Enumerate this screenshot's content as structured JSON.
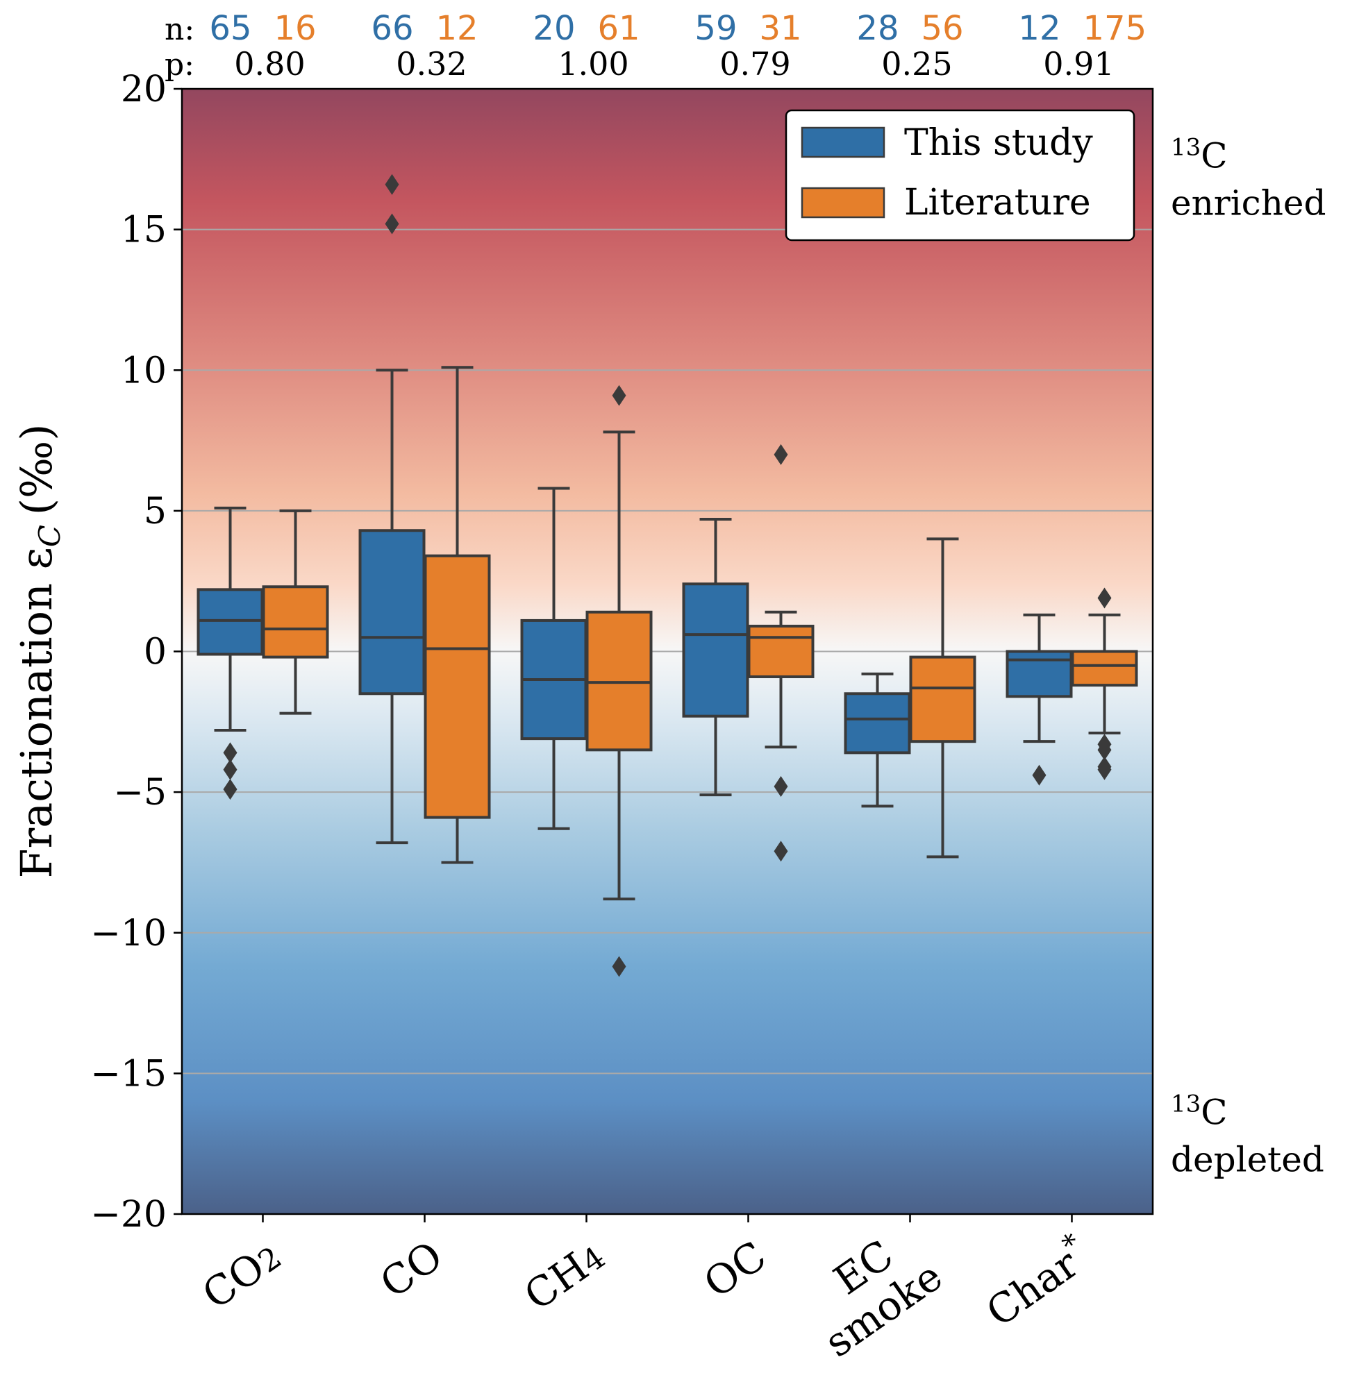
{
  "chart_data": {
    "type": "box",
    "ylabel_main": "Fractionation ε",
    "ylabel_sub": "C",
    "ylabel_unit": "(‰)",
    "ylim": [
      -20,
      20
    ],
    "yticks": [
      -20,
      -15,
      -10,
      -5,
      0,
      5,
      10,
      15,
      20
    ],
    "ytick_labels": [
      "−20",
      "−15",
      "−10",
      "−5",
      "0",
      "5",
      "10",
      "15",
      "20"
    ],
    "grid": "horizontal",
    "background": "diverging red-white-blue gradient (enriched above 0, depleted below 0)",
    "legend_position": "top-right",
    "series": [
      {
        "name": "This study",
        "color": "#2f6fa6"
      },
      {
        "name": "Literature",
        "color": "#e57f2b"
      }
    ],
    "categories": [
      {
        "label": "CO",
        "sub": "2",
        "sup": ""
      },
      {
        "label": "CO",
        "sub": "",
        "sup": ""
      },
      {
        "label": "CH",
        "sub": "4",
        "sup": ""
      },
      {
        "label": "OC",
        "sub": "",
        "sup": ""
      },
      {
        "label": "EC",
        "line2": "smoke",
        "sub": "",
        "sup": ""
      },
      {
        "label": "Char",
        "sub": "",
        "sup": "*"
      }
    ],
    "n_label": "n:",
    "p_label": "p:",
    "annotations_right": [
      {
        "sup": "13",
        "text": "C",
        "line2": "enriched",
        "y": 17
      },
      {
        "sup": "13",
        "text": "C",
        "line2": "depleted",
        "y": -17
      }
    ],
    "groups": [
      {
        "category": "CO2",
        "p": "0.80",
        "study": {
          "n": "65",
          "whisker_low": -2.8,
          "q1": -0.1,
          "median": 1.1,
          "q3": 2.2,
          "whisker_high": 5.1,
          "outliers": [
            -3.6,
            -4.2,
            -4.9
          ]
        },
        "literature": {
          "n": "16",
          "whisker_low": -2.2,
          "q1": -0.2,
          "median": 0.8,
          "q3": 2.3,
          "whisker_high": 5.0,
          "outliers": []
        }
      },
      {
        "category": "CO",
        "p": "0.32",
        "study": {
          "n": "66",
          "whisker_low": -6.8,
          "q1": -1.5,
          "median": 0.5,
          "q3": 4.3,
          "whisker_high": 10.0,
          "outliers": [
            16.6,
            15.2
          ]
        },
        "literature": {
          "n": "12",
          "whisker_low": -7.5,
          "q1": -5.9,
          "median": 0.1,
          "q3": 3.4,
          "whisker_high": 10.1,
          "outliers": []
        }
      },
      {
        "category": "CH4",
        "p": "1.00",
        "study": {
          "n": "20",
          "whisker_low": -6.3,
          "q1": -3.1,
          "median": -1.0,
          "q3": 1.1,
          "whisker_high": 5.8,
          "outliers": []
        },
        "literature": {
          "n": "61",
          "whisker_low": -8.8,
          "q1": -3.5,
          "median": -1.1,
          "q3": 1.4,
          "whisker_high": 7.8,
          "outliers": [
            9.1,
            -11.2
          ]
        }
      },
      {
        "category": "OC",
        "p": "0.79",
        "study": {
          "n": "59",
          "whisker_low": -5.1,
          "q1": -2.3,
          "median": 0.6,
          "q3": 2.4,
          "whisker_high": 4.7,
          "outliers": []
        },
        "literature": {
          "n": "31",
          "whisker_low": -3.4,
          "q1": -0.9,
          "median": 0.5,
          "q3": 0.9,
          "whisker_high": 1.4,
          "outliers": [
            7.0,
            -4.8,
            -7.1
          ]
        }
      },
      {
        "category": "EC smoke",
        "p": "0.25",
        "study": {
          "n": "28",
          "whisker_low": -5.5,
          "q1": -3.6,
          "median": -2.4,
          "q3": -1.5,
          "whisker_high": -0.8,
          "outliers": []
        },
        "literature": {
          "n": "56",
          "whisker_low": -7.3,
          "q1": -3.2,
          "median": -1.3,
          "q3": -0.2,
          "whisker_high": 4.0,
          "outliers": []
        }
      },
      {
        "category": "Char*",
        "p": "0.91",
        "study": {
          "n": "12",
          "whisker_low": -3.2,
          "q1": -1.6,
          "median": -0.3,
          "q3": 0.0,
          "whisker_high": 1.3,
          "outliers": [
            -4.4
          ]
        },
        "literature": {
          "n": "175",
          "whisker_low": -2.9,
          "q1": -1.2,
          "median": -0.5,
          "q3": 0.0,
          "whisker_high": 1.3,
          "outliers": [
            1.9,
            -3.3,
            -3.5,
            -4.1,
            -4.2
          ]
        }
      }
    ]
  }
}
